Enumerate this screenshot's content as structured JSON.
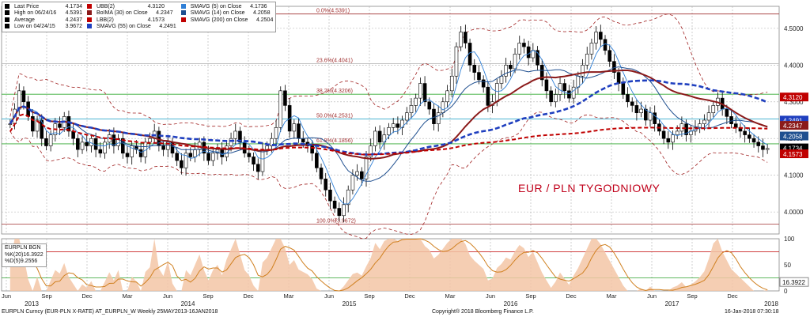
{
  "legend_main": {
    "rows_col1": [
      {
        "label": "Last Price",
        "value": "4.1734",
        "color": "#000000"
      },
      {
        "label": "High on 06/24/16",
        "value": "4.5391",
        "color": "#000000"
      },
      {
        "label": "Average",
        "value": "4.2437",
        "color": "#000000"
      },
      {
        "label": "Low on 04/24/15",
        "value": "3.9672",
        "color": "#000000"
      }
    ],
    "rows_col2": [
      {
        "label": "UBB(2)",
        "value": "4.3120",
        "color": "#c00000"
      },
      {
        "label": "BoIMA (30) on Close",
        "value": "4.2347",
        "color": "#8b1a1a"
      },
      {
        "label": "LBB(2)",
        "value": "4.1573",
        "color": "#c00000"
      },
      {
        "label": "SMAVG (55) on Close",
        "value": "4.2491",
        "color": "#1f3fbf"
      }
    ],
    "rows_col3": [
      {
        "label": "SMAVG (5) on Close",
        "value": "4.1736",
        "color": "#2f7fd6"
      },
      {
        "label": "SMAVG (14) on Close",
        "value": "4.2058",
        "color": "#1f4f8f"
      },
      {
        "label": "SMAVG (200) on Close",
        "value": "4.2504",
        "color": "#c00000"
      }
    ]
  },
  "legend_osc": {
    "title": "EURPLN BGN",
    "rows": [
      {
        "label": "%K(20)",
        "value": "16.3922",
        "color": "#e0a070"
      },
      {
        "label": "%D(5)",
        "value": "9.2556",
        "color": "#d08020"
      }
    ]
  },
  "annotation": "EUR / PLN TYGODNIOWY",
  "fib_labels": [
    "0.0%(4.5391)",
    "23.6%(4.4041)",
    "38.2%(4.3206)",
    "50.0%(4.2531)",
    "61.8%(4.1856)",
    "100.0%(3.9672)"
  ],
  "right_tags": [
    {
      "text": "4.3120",
      "color": "#c00000"
    },
    {
      "text": "4.2491",
      "color": "#1f3fbf"
    },
    {
      "text": "4.2347",
      "color": "#8b1a1a"
    },
    {
      "text": "4.2058",
      "color": "#1f4f8f"
    },
    {
      "text": "4.1734",
      "color": "#000000"
    },
    {
      "text": "4.1573",
      "color": "#c00000"
    }
  ],
  "osc_tag": "16.3922",
  "footer": {
    "left": "EURPLN Curncy (EUR-PLN X-RATE) AT_EURPLN_W  Weekly 25MAY2013-16JAN2018",
    "center": "Copyright® 2018 Bloomberg Finance L.P.",
    "right": "16-Jan-2018 07:30:18"
  },
  "chart_data": {
    "type": "candlestick",
    "title": "EUR / PLN TYGODNIOWY",
    "period": "Weekly 25MAY2013-16JAN2018",
    "y_axis": {
      "ticks": [
        "4.0000",
        "4.1000",
        "4.2000",
        "4.3000",
        "4.4000",
        "4.5000"
      ],
      "ylim": [
        3.94,
        4.56
      ]
    },
    "osc_axis": {
      "ticks": [
        "0",
        "50",
        "100"
      ],
      "ylim": [
        0,
        100
      ]
    },
    "x_month_labels": [
      "Jun",
      "Sep",
      "Dec",
      "Mar",
      "Jun",
      "Sep",
      "Dec",
      "Mar",
      "Jun",
      "Sep",
      "Dec",
      "Mar",
      "Jun",
      "Sep",
      "Dec",
      "Mar",
      "Jun",
      "Sep",
      "Dec"
    ],
    "x_year_labels": [
      "2013",
      "2014",
      "2015",
      "2016",
      "2017",
      "2018"
    ],
    "fibonacci": [
      {
        "level": "0.0%",
        "value": 4.5391
      },
      {
        "level": "23.6%",
        "value": 4.4041
      },
      {
        "level": "38.2%",
        "value": 4.3206
      },
      {
        "level": "50.0%",
        "value": 4.2531
      },
      {
        "level": "61.8%",
        "value": 4.1856
      },
      {
        "level": "100.0%",
        "value": 3.9672
      }
    ],
    "close": [
      4.24,
      4.28,
      4.33,
      4.3,
      4.26,
      4.22,
      4.25,
      4.2,
      4.18,
      4.21,
      4.24,
      4.23,
      4.26,
      4.22,
      4.2,
      4.17,
      4.19,
      4.18,
      4.2,
      4.17,
      4.16,
      4.19,
      4.21,
      4.18,
      4.2,
      4.16,
      4.15,
      4.18,
      4.17,
      4.15,
      4.19,
      4.2,
      4.22,
      4.18,
      4.17,
      4.19,
      4.16,
      4.14,
      4.12,
      4.16,
      4.15,
      4.17,
      4.19,
      4.16,
      4.14,
      4.16,
      4.17,
      4.15,
      4.18,
      4.2,
      4.22,
      4.19,
      4.16,
      4.15,
      4.13,
      4.11,
      4.17,
      4.18,
      4.2,
      4.23,
      4.33,
      4.29,
      4.22,
      4.24,
      4.2,
      4.19,
      4.18,
      4.16,
      4.12,
      4.09,
      4.06,
      4.03,
      4.01,
      3.99,
      4.02,
      4.06,
      4.1,
      4.11,
      4.09,
      4.15,
      4.18,
      4.22,
      4.19,
      4.21,
      4.23,
      4.24,
      4.23,
      4.25,
      4.27,
      4.29,
      4.31,
      4.35,
      4.3,
      4.28,
      4.24,
      4.27,
      4.3,
      4.33,
      4.37,
      4.45,
      4.49,
      4.46,
      4.4,
      4.38,
      4.36,
      4.34,
      4.29,
      4.3,
      4.35,
      4.37,
      4.4,
      4.39,
      4.43,
      4.46,
      4.45,
      4.42,
      4.44,
      4.4,
      4.36,
      4.33,
      4.3,
      4.32,
      4.35,
      4.33,
      4.31,
      4.34,
      4.37,
      4.4,
      4.43,
      4.46,
      4.49,
      4.47,
      4.44,
      4.41,
      4.38,
      4.35,
      4.32,
      4.3,
      4.29,
      4.27,
      4.28,
      4.25,
      4.27,
      4.24,
      4.22,
      4.2,
      4.19,
      4.21,
      4.22,
      4.24,
      4.21,
      4.22,
      4.23,
      4.24,
      4.25,
      4.27,
      4.29,
      4.31,
      4.28,
      4.26,
      4.24,
      4.23,
      4.22,
      4.21,
      4.2,
      4.19,
      4.18,
      4.17,
      4.173
    ]
  }
}
